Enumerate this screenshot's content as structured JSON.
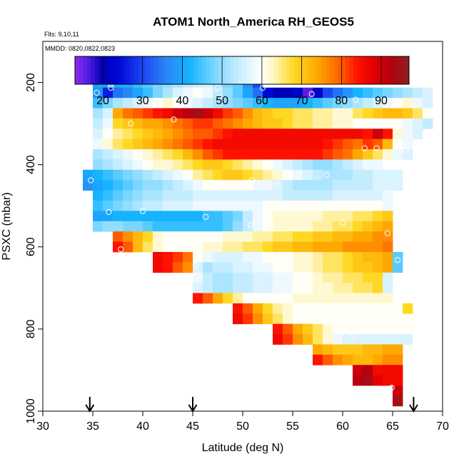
{
  "chart_data": {
    "type": "heatmap",
    "title": "ATOM1 North_America RH_GEOS5",
    "flights_note": "Flts: 9,10,11",
    "dates_note": "MMDD: 0820,0822,0823",
    "xlabel": "Latitude (deg N)",
    "ylabel": "PSXC (mbar)",
    "xlim": [
      30,
      70
    ],
    "ylim": [
      1000,
      100
    ],
    "x_ticks": [
      30,
      35,
      40,
      45,
      50,
      55,
      60,
      65,
      70
    ],
    "y_ticks": [
      200,
      400,
      600,
      800,
      1000
    ],
    "colorbar": {
      "range": [
        13,
        97
      ],
      "ticks": [
        20,
        30,
        40,
        50,
        60,
        70,
        80,
        90
      ],
      "stops": [
        {
          "v": 13,
          "c": "#8c2be8"
        },
        {
          "v": 16,
          "c": "#5a1ee6"
        },
        {
          "v": 20,
          "c": "#0000b4"
        },
        {
          "v": 24,
          "c": "#0008d8"
        },
        {
          "v": 30,
          "c": "#1c46f0"
        },
        {
          "v": 36,
          "c": "#2a86f6"
        },
        {
          "v": 42,
          "c": "#14b4ff"
        },
        {
          "v": 48,
          "c": "#7ad6ff"
        },
        {
          "v": 54,
          "c": "#c4ecff"
        },
        {
          "v": 58,
          "c": "#eef9ff"
        },
        {
          "v": 60,
          "c": "#fffff8"
        },
        {
          "v": 63,
          "c": "#fff6c0"
        },
        {
          "v": 68,
          "c": "#ffd824"
        },
        {
          "v": 74,
          "c": "#ffa800"
        },
        {
          "v": 80,
          "c": "#ff5a00"
        },
        {
          "v": 84,
          "c": "#ff1200"
        },
        {
          "v": 88,
          "c": "#e40000"
        },
        {
          "v": 92,
          "c": "#b80010"
        },
        {
          "v": 97,
          "c": "#8a2020"
        }
      ]
    },
    "arrow_latitudes": [
      34.7,
      45.0,
      67.1
    ],
    "lat_bin_width": 1.0,
    "pressure_bin_height": 25,
    "rows": [
      {
        "p": 200,
        "start": 35,
        "values": [
          40,
          40,
          41,
          42,
          44,
          46,
          48,
          50,
          52,
          54,
          55,
          56,
          52,
          48,
          46,
          38,
          30
        ]
      },
      {
        "p": 225,
        "start": 35,
        "values": [
          38,
          26,
          34,
          36,
          40,
          44,
          48,
          52,
          56,
          58,
          60,
          58,
          54,
          50,
          46,
          40,
          34,
          24,
          20,
          20,
          22,
          16,
          22,
          30,
          34,
          38,
          42,
          44,
          46,
          48,
          50,
          52,
          54,
          56
        ]
      },
      {
        "p": 250,
        "start": 35,
        "values": [
          44,
          48,
          52,
          54,
          56,
          58,
          60,
          62,
          60,
          58,
          56,
          54,
          52,
          50,
          48,
          46,
          44,
          42,
          40,
          40,
          40,
          42,
          44,
          46,
          48,
          50,
          52,
          54,
          56,
          58,
          60,
          62,
          58,
          56
        ]
      },
      {
        "p": 275,
        "start": 35,
        "values": [
          52,
          56,
          74,
          78,
          80,
          82,
          84,
          86,
          90,
          92,
          94,
          90,
          86,
          82,
          80,
          76,
          72,
          70,
          68,
          68,
          66,
          66,
          64,
          64,
          62,
          62,
          66,
          68,
          70,
          72,
          72,
          70,
          66,
          60
        ]
      },
      {
        "p": 300,
        "start": 35,
        "values": [
          54,
          58,
          68,
          70,
          72,
          74,
          74,
          76,
          78,
          80,
          82,
          82,
          80,
          78,
          76,
          74,
          72,
          70,
          70,
          68,
          66,
          66,
          64,
          64,
          62,
          62,
          60,
          60,
          60,
          60,
          60,
          58,
          56,
          54
        ]
      },
      {
        "p": 325,
        "start": 35,
        "values": [
          56,
          60,
          64,
          66,
          68,
          70,
          72,
          74,
          76,
          78,
          80,
          80,
          82,
          84,
          86,
          86,
          86,
          86,
          86,
          86,
          86,
          86,
          86,
          86,
          86,
          86,
          86,
          84,
          90,
          84,
          62,
          58,
          56
        ]
      },
      {
        "p": 350,
        "start": 35,
        "values": [
          58,
          62,
          66,
          68,
          70,
          72,
          74,
          76,
          78,
          80,
          82,
          84,
          86,
          86,
          86,
          86,
          86,
          86,
          86,
          86,
          86,
          86,
          86,
          84,
          82,
          80,
          78,
          82,
          80,
          72,
          60,
          58
        ]
      },
      {
        "p": 375,
        "start": 35,
        "values": [
          52,
          54,
          56,
          58,
          60,
          62,
          64,
          66,
          68,
          72,
          76,
          80,
          82,
          84,
          84,
          84,
          84,
          84,
          84,
          84,
          84,
          84,
          84,
          82,
          80,
          78,
          74,
          70,
          66,
          62,
          58,
          56
        ]
      },
      {
        "p": 400,
        "start": 35,
        "values": [
          50,
          52,
          54,
          56,
          58,
          60,
          62,
          62,
          64,
          66,
          68,
          70,
          70,
          68,
          66,
          64,
          62,
          60,
          58,
          56,
          54,
          52,
          50,
          50,
          52,
          54,
          56,
          58,
          58
        ]
      },
      {
        "p": 425,
        "start": 34,
        "values": [
          40,
          42,
          44,
          46,
          48,
          50,
          52,
          54,
          56,
          58,
          60,
          64,
          66,
          68,
          70,
          70,
          68,
          66,
          64,
          62,
          60,
          58,
          56,
          54,
          52,
          52,
          52,
          54,
          54,
          56,
          56,
          56
        ]
      },
      {
        "p": 450,
        "start": 34,
        "values": [
          38,
          40,
          42,
          44,
          46,
          48,
          50,
          50,
          52,
          54,
          56,
          58,
          60,
          60,
          60,
          60,
          60,
          58,
          58,
          56,
          54,
          52,
          52,
          52,
          52,
          54,
          54,
          54,
          54,
          56,
          56,
          56
        ]
      },
      {
        "p": 475,
        "start": 35,
        "values": [
          42,
          44,
          46,
          48,
          50,
          52,
          52,
          54,
          54,
          54,
          56,
          56,
          56,
          56,
          56,
          56,
          56,
          56,
          56,
          54,
          54,
          54,
          54,
          54,
          56,
          56,
          56,
          56,
          56,
          58
        ]
      },
      {
        "p": 500,
        "start": 35,
        "values": [
          44,
          46,
          48,
          50,
          52,
          54,
          54,
          56,
          56,
          56,
          58,
          58,
          58,
          58,
          58,
          58,
          58,
          60,
          60,
          60,
          60,
          60,
          60,
          60,
          60,
          60,
          60,
          60,
          60,
          58
        ]
      },
      {
        "p": 525,
        "start": 35,
        "values": [
          40,
          40,
          42,
          42,
          42,
          42,
          42,
          42,
          42,
          42,
          42,
          44,
          44,
          46,
          48,
          54,
          58,
          60,
          62,
          62,
          62,
          62,
          62,
          64,
          64,
          64,
          66,
          66,
          68,
          70
        ]
      },
      {
        "p": 550,
        "start": 35,
        "values": [
          48,
          50,
          50,
          48,
          48,
          46,
          44,
          44,
          44,
          44,
          44,
          44,
          44,
          46,
          50,
          54,
          58,
          60,
          62,
          62,
          62,
          62,
          64,
          64,
          66,
          66,
          68,
          70,
          72,
          74
        ]
      },
      {
        "p": 575,
        "start": 37,
        "values": [
          80,
          76,
          72,
          68,
          62,
          60,
          60,
          60,
          60,
          60,
          60,
          62,
          62,
          62,
          64,
          64,
          66,
          66,
          68,
          68,
          70,
          70,
          72,
          72,
          74,
          74,
          76,
          76
        ]
      },
      {
        "p": 600,
        "start": 37,
        "values": [
          84,
          80,
          72,
          66,
          62,
          60,
          60,
          60,
          60,
          62,
          62,
          64,
          64,
          66,
          66,
          68,
          70,
          70,
          72,
          72,
          74,
          74,
          74,
          76,
          76,
          76,
          76,
          78
        ]
      },
      {
        "p": 625,
        "start": 41,
        "values": [
          86,
          84,
          82,
          78,
          60,
          58,
          56,
          56,
          56,
          58,
          58,
          60,
          60,
          60,
          62,
          62,
          64,
          66,
          66,
          68,
          70,
          72,
          72,
          74,
          46
        ]
      },
      {
        "p": 650,
        "start": 41,
        "values": [
          86,
          84,
          80,
          76,
          56,
          52,
          54,
          54,
          56,
          56,
          58,
          58,
          60,
          60,
          62,
          62,
          64,
          66,
          66,
          68,
          70,
          70,
          72,
          74,
          46
        ]
      },
      {
        "p": 675,
        "start": 45,
        "values": [
          58,
          54,
          52,
          52,
          54,
          54,
          56,
          56,
          58,
          58,
          60,
          60,
          62,
          64,
          64,
          66,
          66,
          68,
          68,
          56
        ]
      },
      {
        "p": 700,
        "start": 45,
        "values": [
          56,
          54,
          52,
          52,
          54,
          54,
          56,
          56,
          58,
          58,
          60,
          60,
          62,
          62,
          64,
          64,
          66,
          66,
          68,
          56
        ]
      },
      {
        "p": 725,
        "start": 45,
        "values": [
          84,
          80,
          74,
          68,
          64,
          60,
          60,
          60,
          60,
          60,
          62,
          62,
          62,
          62,
          62,
          62,
          62,
          62,
          62,
          62
        ]
      },
      {
        "p": 750,
        "start": 49,
        "values": [
          84,
          80,
          74,
          68,
          64,
          62,
          60,
          60,
          60,
          60,
          60,
          60,
          60,
          60,
          60,
          60,
          60,
          68
        ]
      },
      {
        "p": 775,
        "start": 49,
        "values": [
          86,
          82,
          76,
          70,
          66,
          62,
          60,
          60,
          60,
          60,
          60,
          60,
          60,
          60,
          60,
          60,
          60
        ]
      },
      {
        "p": 800,
        "start": 53,
        "values": [
          84,
          80,
          74,
          70,
          66,
          62,
          60,
          60,
          60,
          60,
          60,
          60,
          60,
          60
        ]
      },
      {
        "p": 825,
        "start": 53,
        "values": [
          86,
          82,
          76,
          72,
          66,
          62,
          58,
          56,
          56,
          56,
          56,
          56,
          56,
          56
        ]
      },
      {
        "p": 850,
        "start": 57,
        "values": [
          74,
          72,
          70,
          70,
          70,
          72,
          72,
          74,
          74
        ]
      },
      {
        "p": 875,
        "start": 57,
        "values": [
          84,
          80,
          76,
          74,
          72,
          72,
          74,
          76,
          76
        ]
      },
      {
        "p": 900,
        "start": 61,
        "values": [
          90,
          92,
          86,
          86,
          86
        ]
      },
      {
        "p": 925,
        "start": 61,
        "values": [
          92,
          94,
          88,
          86,
          86
        ]
      },
      {
        "p": 950,
        "start": 65,
        "values": [
          90
        ]
      },
      {
        "p": 975,
        "start": 65,
        "values": [
          94
        ]
      }
    ],
    "points": [
      {
        "lat": 35.9,
        "p": 189
      },
      {
        "lat": 36.6,
        "p": 189
      },
      {
        "lat": 36.8,
        "p": 197
      },
      {
        "lat": 36.8,
        "p": 205
      },
      {
        "lat": 36.8,
        "p": 213
      },
      {
        "lat": 35.4,
        "p": 225
      },
      {
        "lat": 47.5,
        "p": 213
      },
      {
        "lat": 52.0,
        "p": 213
      },
      {
        "lat": 56.9,
        "p": 228
      },
      {
        "lat": 61.3,
        "p": 242
      },
      {
        "lat": 69.9,
        "p": 228
      },
      {
        "lat": 43.1,
        "p": 290
      },
      {
        "lat": 38.8,
        "p": 300
      },
      {
        "lat": 62.2,
        "p": 360
      },
      {
        "lat": 63.4,
        "p": 360
      },
      {
        "lat": 66.3,
        "p": 365
      },
      {
        "lat": 34.8,
        "p": 438
      },
      {
        "lat": 50.9,
        "p": 438
      },
      {
        "lat": 53.5,
        "p": 450
      },
      {
        "lat": 58.4,
        "p": 425
      },
      {
        "lat": 55.3,
        "p": 495
      },
      {
        "lat": 36.6,
        "p": 515
      },
      {
        "lat": 40.0,
        "p": 513
      },
      {
        "lat": 46.3,
        "p": 527
      },
      {
        "lat": 50.8,
        "p": 547
      },
      {
        "lat": 60.0,
        "p": 542
      },
      {
        "lat": 64.5,
        "p": 567
      },
      {
        "lat": 37.8,
        "p": 606
      },
      {
        "lat": 45.3,
        "p": 645
      },
      {
        "lat": 65.5,
        "p": 632
      },
      {
        "lat": 60.1,
        "p": 795
      },
      {
        "lat": 61.1,
        "p": 817
      },
      {
        "lat": 64.9,
        "p": 943
      }
    ]
  }
}
